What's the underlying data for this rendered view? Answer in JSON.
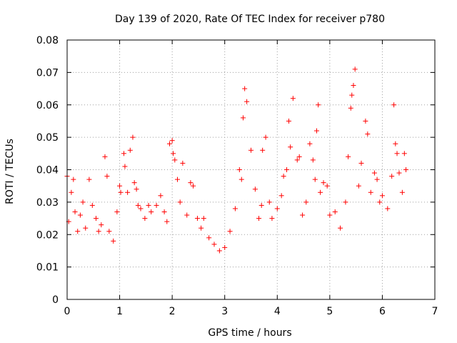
{
  "chart_data": {
    "type": "scatter",
    "title": "Day 139 of 2020, Rate Of TEC Index for receiver p780",
    "xlabel": "GPS time / hours",
    "ylabel": "ROTI / TECUs",
    "xlim": [
      0,
      7
    ],
    "ylim": [
      0,
      0.08
    ],
    "x_ticks": [
      "0",
      "1",
      "2",
      "3",
      "4",
      "5",
      "6",
      "7"
    ],
    "y_ticks": [
      "0",
      "0.01",
      "0.02",
      "0.03",
      "0.04",
      "0.05",
      "0.06",
      "0.07",
      "0.08"
    ],
    "grid": true,
    "marker": "+",
    "color": "#ff0000",
    "series": [
      {
        "x": [
          0.0,
          0.03,
          0.08,
          0.12,
          0.15,
          0.2,
          0.25,
          0.3,
          0.35,
          0.42,
          0.48,
          0.55,
          0.6,
          0.65,
          0.72,
          0.76,
          0.8,
          0.88,
          0.95,
          1.0,
          1.02,
          1.08,
          1.1,
          1.15,
          1.2,
          1.25,
          1.28,
          1.32,
          1.35,
          1.4,
          1.48,
          1.55,
          1.6,
          1.7,
          1.78,
          1.85,
          1.9,
          1.95,
          2.0,
          2.02,
          2.05,
          2.1,
          2.15,
          2.2,
          2.28,
          2.35,
          2.4,
          2.48,
          2.55,
          2.6,
          2.7,
          2.8,
          2.9,
          3.0,
          3.1,
          3.2,
          3.28,
          3.32,
          3.35,
          3.38,
          3.42,
          3.5,
          3.58,
          3.65,
          3.7,
          3.72,
          3.78,
          3.85,
          3.9,
          4.0,
          4.08,
          4.12,
          4.18,
          4.22,
          4.25,
          4.3,
          4.38,
          4.42,
          4.48,
          4.55,
          4.62,
          4.68,
          4.72,
          4.75,
          4.78,
          4.82,
          4.88,
          4.95,
          5.0,
          5.1,
          5.2,
          5.3,
          5.35,
          5.4,
          5.42,
          5.45,
          5.48,
          5.55,
          5.6,
          5.68,
          5.72,
          5.78,
          5.85,
          5.9,
          5.95,
          6.0,
          6.1,
          6.18,
          6.22,
          6.25,
          6.28,
          6.32,
          6.38,
          6.42,
          6.45
        ],
        "y": [
          0.038,
          0.024,
          0.033,
          0.037,
          0.027,
          0.021,
          0.026,
          0.03,
          0.022,
          0.037,
          0.029,
          0.025,
          0.021,
          0.023,
          0.044,
          0.038,
          0.021,
          0.018,
          0.027,
          0.035,
          0.033,
          0.045,
          0.041,
          0.033,
          0.046,
          0.05,
          0.036,
          0.034,
          0.029,
          0.028,
          0.025,
          0.029,
          0.027,
          0.029,
          0.032,
          0.027,
          0.024,
          0.048,
          0.049,
          0.045,
          0.043,
          0.037,
          0.03,
          0.042,
          0.026,
          0.036,
          0.035,
          0.025,
          0.022,
          0.025,
          0.019,
          0.017,
          0.015,
          0.016,
          0.021,
          0.028,
          0.04,
          0.037,
          0.056,
          0.065,
          0.061,
          0.046,
          0.034,
          0.025,
          0.029,
          0.046,
          0.05,
          0.03,
          0.025,
          0.028,
          0.032,
          0.038,
          0.04,
          0.055,
          0.047,
          0.062,
          0.043,
          0.044,
          0.026,
          0.03,
          0.048,
          0.043,
          0.037,
          0.052,
          0.06,
          0.033,
          0.036,
          0.035,
          0.026,
          0.027,
          0.022,
          0.03,
          0.044,
          0.059,
          0.063,
          0.066,
          0.071,
          0.035,
          0.042,
          0.055,
          0.051,
          0.033,
          0.039,
          0.037,
          0.03,
          0.032,
          0.028,
          0.038,
          0.06,
          0.048,
          0.045,
          0.039,
          0.033,
          0.045,
          0.04
        ]
      }
    ]
  }
}
